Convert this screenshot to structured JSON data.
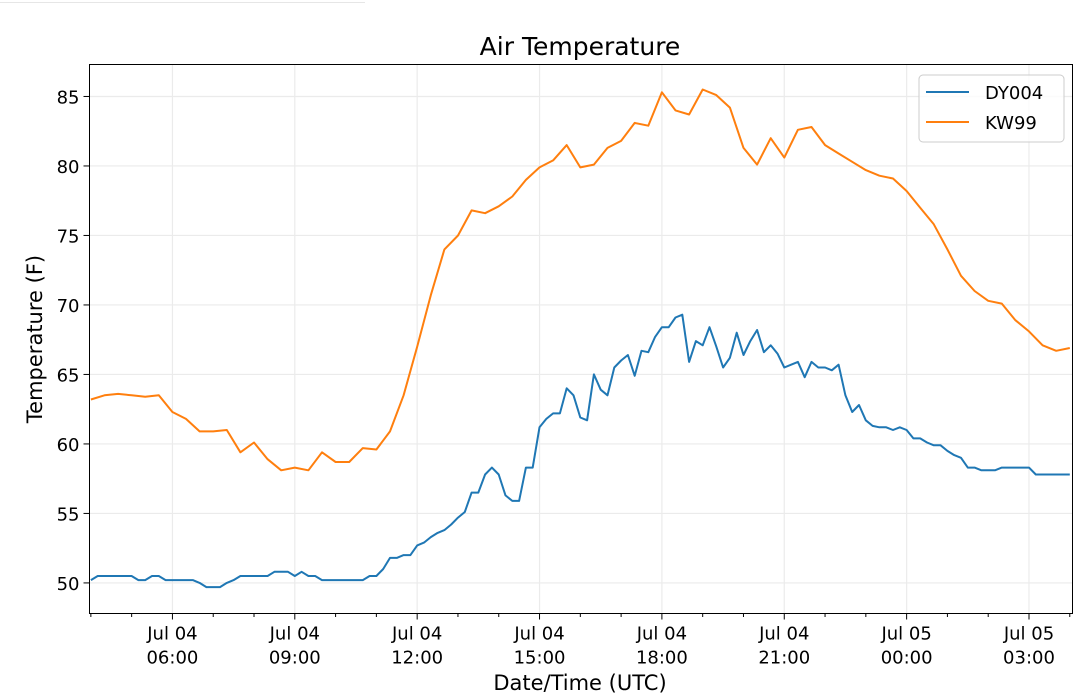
{
  "chart_data": {
    "type": "line",
    "title": "Air Temperature",
    "xlabel": "Date/Time (UTC)",
    "ylabel": "Temperature (F)",
    "x_units": "minutes since Jul 04 04:00 UTC",
    "xlim": [
      -2,
      1444
    ],
    "ylim": [
      47.8,
      87.3
    ],
    "grid": true,
    "legend_position": "top-right",
    "yticks": [
      50,
      55,
      60,
      65,
      70,
      75,
      80,
      85
    ],
    "xticks": [
      {
        "value": 120,
        "label": [
          "Jul 04",
          "06:00"
        ]
      },
      {
        "value": 300,
        "label": [
          "Jul 04",
          "09:00"
        ]
      },
      {
        "value": 480,
        "label": [
          "Jul 04",
          "12:00"
        ]
      },
      {
        "value": 660,
        "label": [
          "Jul 04",
          "15:00"
        ]
      },
      {
        "value": 840,
        "label": [
          "Jul 04",
          "18:00"
        ]
      },
      {
        "value": 1020,
        "label": [
          "Jul 04",
          "21:00"
        ]
      },
      {
        "value": 1200,
        "label": [
          "Jul 05",
          "00:00"
        ]
      },
      {
        "value": 1380,
        "label": [
          "Jul 05",
          "03:00"
        ]
      }
    ],
    "minor_xtick_interval_minutes": 60,
    "series": [
      {
        "name": "DY004",
        "color": "#1f77b4",
        "start_minute": 0,
        "interval_minutes": 10,
        "values": [
          50.2,
          50.5,
          50.5,
          50.5,
          50.5,
          50.5,
          50.5,
          50.2,
          50.2,
          50.5,
          50.5,
          50.2,
          50.2,
          50.2,
          50.2,
          50.2,
          50.0,
          49.7,
          49.7,
          49.7,
          50.0,
          50.2,
          50.5,
          50.5,
          50.5,
          50.5,
          50.5,
          50.8,
          50.8,
          50.8,
          50.5,
          50.8,
          50.5,
          50.5,
          50.2,
          50.2,
          50.2,
          50.2,
          50.2,
          50.2,
          50.2,
          50.5,
          50.5,
          51.0,
          51.8,
          51.8,
          52.0,
          52.0,
          52.7,
          52.9,
          53.3,
          53.6,
          53.8,
          54.2,
          54.7,
          55.1,
          56.5,
          56.5,
          57.8,
          58.3,
          57.8,
          56.3,
          55.9,
          55.9,
          58.3,
          58.3,
          61.2,
          61.8,
          62.2,
          62.2,
          64.0,
          63.5,
          61.9,
          61.7,
          65.0,
          63.9,
          63.5,
          65.5,
          66.0,
          66.4,
          64.9,
          66.7,
          66.6,
          67.7,
          68.4,
          68.4,
          69.1,
          69.3,
          65.9,
          67.4,
          67.1,
          68.4,
          67.0,
          65.5,
          66.2,
          68.0,
          66.4,
          67.4,
          68.2,
          66.6,
          67.1,
          66.5,
          65.5,
          65.7,
          65.9,
          64.8,
          65.9,
          65.5,
          65.5,
          65.3,
          65.7,
          63.5,
          62.3,
          62.8,
          61.7,
          61.3,
          61.2,
          61.2,
          61.0,
          61.2,
          61.0,
          60.4,
          60.4,
          60.1,
          59.9,
          59.9,
          59.5,
          59.2,
          59.0,
          58.3,
          58.3,
          58.1,
          58.1,
          58.1,
          58.3,
          58.3,
          58.3,
          58.3,
          58.3,
          57.8,
          57.8,
          57.8,
          57.8,
          57.8,
          57.8
        ]
      },
      {
        "name": "KW99",
        "color": "#ff7f0e",
        "start_minute": 0,
        "interval_minutes": 20,
        "values": [
          63.2,
          63.5,
          63.6,
          63.5,
          63.4,
          63.5,
          62.3,
          61.8,
          60.9,
          60.9,
          61.0,
          59.4,
          60.1,
          58.9,
          58.1,
          58.3,
          58.1,
          59.4,
          58.7,
          58.7,
          59.7,
          59.6,
          60.9,
          63.5,
          67.0,
          70.7,
          74.0,
          75.0,
          76.8,
          76.6,
          77.1,
          77.8,
          79.0,
          79.9,
          80.4,
          81.5,
          79.9,
          80.1,
          81.3,
          81.8,
          83.1,
          82.9,
          85.3,
          84.0,
          83.7,
          85.5,
          85.1,
          84.2,
          81.3,
          80.1,
          82.0,
          80.6,
          82.6,
          82.8,
          81.5,
          80.9,
          80.3,
          79.7,
          79.3,
          79.1,
          78.2,
          77.0,
          75.8,
          74.0,
          72.1,
          71.0,
          70.3,
          70.1,
          68.9,
          68.1,
          67.1,
          66.7,
          66.9
        ]
      }
    ]
  }
}
